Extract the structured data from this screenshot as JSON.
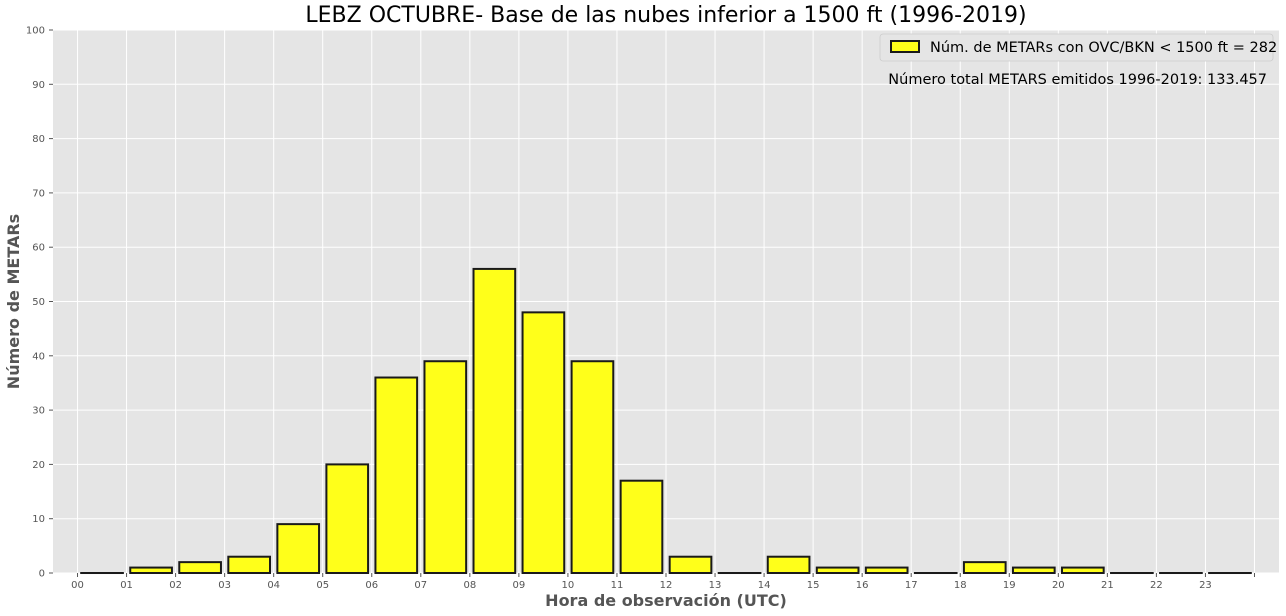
{
  "chart_data": {
    "type": "bar",
    "title": "LEBZ OCTUBRE- Base de las nubes inferior a 1500 ft (1996-2019)",
    "xlabel": "Hora de observación (UTC)",
    "ylabel": "Número de METARs",
    "categories": [
      "00",
      "01",
      "02",
      "03",
      "04",
      "05",
      "06",
      "07",
      "08",
      "09",
      "10",
      "11",
      "12",
      "13",
      "14",
      "15",
      "16",
      "17",
      "18",
      "19",
      "20",
      "21",
      "22",
      "23"
    ],
    "series": [
      {
        "name": "Núm. de METARs con OVC/BKN < 1500 ft = 282",
        "values": [
          0,
          1,
          2,
          3,
          9,
          20,
          36,
          39,
          56,
          48,
          39,
          17,
          3,
          0,
          3,
          1,
          1,
          0,
          2,
          1,
          1,
          0,
          0,
          0
        ]
      }
    ],
    "ylim": [
      0,
      100
    ],
    "yticks": [
      0,
      10,
      20,
      30,
      40,
      50,
      60,
      70,
      80,
      90,
      100
    ],
    "grid": true,
    "legend_position": "top-right",
    "annotation": "Número total METARS emitidos 1996-2019: 133.457",
    "colors": {
      "bar_fill": "#ffff1a",
      "bar_edge": "#1a1a1a",
      "plot_background": "#e5e5e5",
      "grid": "#ffffff"
    }
  }
}
